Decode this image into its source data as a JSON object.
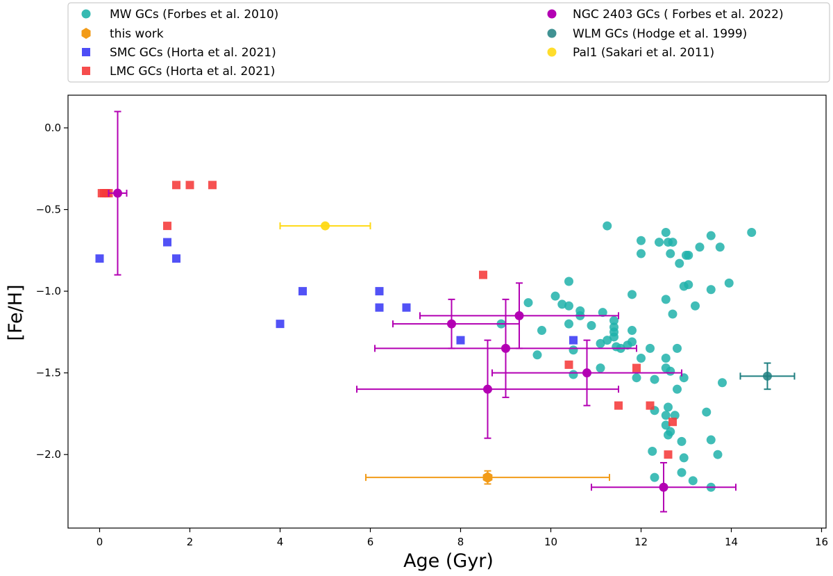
{
  "chart_data": {
    "type": "scatter",
    "xlabel": "Age (Gyr)",
    "ylabel": "[Fe/H]",
    "xlim": [
      -0.7,
      16.1
    ],
    "ylim": [
      -2.45,
      0.2
    ],
    "xticks": [
      0,
      2,
      4,
      6,
      8,
      10,
      12,
      14,
      16
    ],
    "yticks": [
      0.0,
      -0.5,
      -1.0,
      -1.5,
      -2.0
    ],
    "xtick_labels": [
      "0",
      "2",
      "4",
      "6",
      "8",
      "10",
      "12",
      "14",
      "16"
    ],
    "ytick_labels": [
      "0.0",
      "−0.5",
      "−1.0",
      "−1.5",
      "−2.0"
    ],
    "legend_position": "top",
    "series": [
      {
        "name": "MW GCs (Forbes et al. 2010)",
        "key": "mw",
        "marker": "circle",
        "color": "#20b2aa",
        "x": [
          11.25,
          12.0,
          12.4,
          12.6,
          12.7,
          12.0,
          12.55,
          12.65,
          12.85,
          13.0,
          13.05,
          13.3,
          13.55,
          13.75,
          14.45,
          10.4,
          11.8,
          12.95,
          13.05,
          13.55,
          13.95,
          9.5,
          10.25,
          10.4,
          10.65,
          11.15,
          12.55,
          12.7,
          13.2,
          8.9,
          9.8,
          10.1,
          10.4,
          10.65,
          10.9,
          11.4,
          11.4,
          11.4,
          11.4,
          11.1,
          11.25,
          11.45,
          11.55,
          11.7,
          11.8,
          11.8,
          12.2,
          12.55,
          12.8,
          10.5,
          9.7,
          10.5,
          11.1,
          12.0,
          12.55,
          12.65,
          11.9,
          12.3,
          12.95,
          12.8,
          12.6,
          12.55,
          12.75,
          12.3,
          12.65,
          12.6,
          12.55,
          13.45,
          13.55,
          12.9,
          12.95,
          12.25,
          13.7,
          12.9,
          13.15,
          12.3,
          13.55,
          13.8
        ],
        "y": [
          -0.6,
          -0.69,
          -0.7,
          -0.7,
          -0.7,
          -0.77,
          -0.64,
          -0.77,
          -0.83,
          -0.78,
          -0.78,
          -0.73,
          -0.66,
          -0.73,
          -0.64,
          -0.94,
          -1.02,
          -0.97,
          -0.96,
          -0.99,
          -0.95,
          -1.07,
          -1.08,
          -1.09,
          -1.12,
          -1.13,
          -1.05,
          -1.14,
          -1.09,
          -1.2,
          -1.24,
          -1.03,
          -1.2,
          -1.15,
          -1.21,
          -1.18,
          -1.22,
          -1.25,
          -1.28,
          -1.32,
          -1.3,
          -1.34,
          -1.35,
          -1.33,
          -1.24,
          -1.31,
          -1.35,
          -1.41,
          -1.35,
          -1.36,
          -1.39,
          -1.51,
          -1.47,
          -1.41,
          -1.47,
          -1.49,
          -1.53,
          -1.54,
          -1.53,
          -1.6,
          -1.71,
          -1.76,
          -1.76,
          -1.73,
          -1.86,
          -1.88,
          -1.82,
          -1.74,
          -1.91,
          -1.92,
          -2.02,
          -1.98,
          -2.0,
          -2.11,
          -2.16,
          -2.14,
          -2.2,
          -1.56
        ]
      },
      {
        "name": "this work",
        "key": "this",
        "marker": "hexagon",
        "color": "#f29b18",
        "points": [
          {
            "x": 8.6,
            "y": -2.14,
            "xerr": [
              2.7,
              2.7
            ],
            "yerr": [
              0.04,
              0.04
            ]
          }
        ]
      },
      {
        "name": "SMC GCs (Horta et al. 2021)",
        "key": "smc",
        "marker": "square",
        "color": "#3a3af5",
        "x": [
          0.0,
          1.5,
          1.7,
          4.0,
          4.5,
          6.2,
          6.2,
          6.8,
          8.0,
          10.5
        ],
        "y": [
          -0.8,
          -0.7,
          -0.8,
          -1.2,
          -1.0,
          -1.0,
          -1.1,
          -1.1,
          -1.3,
          -1.3
        ]
      },
      {
        "name": "LMC GCs (Horta et al. 2021)",
        "key": "lmc",
        "marker": "square",
        "color": "#f53a3a",
        "x": [
          0.05,
          0.1,
          0.15,
          0.2,
          1.5,
          1.7,
          2.0,
          2.5,
          8.5,
          10.4,
          11.5,
          11.9,
          12.2,
          12.7,
          12.6
        ],
        "y": [
          -0.4,
          -0.4,
          -0.4,
          -0.4,
          -0.6,
          -0.35,
          -0.35,
          -0.35,
          -0.9,
          -1.45,
          -1.7,
          -1.47,
          -1.7,
          -1.8,
          -2.0
        ]
      },
      {
        "name": "NGC 2403 GCs ( Forbes et al. 2022)",
        "key": "ngc",
        "marker": "circle",
        "color": "#b300b3",
        "points": [
          {
            "x": 0.4,
            "y": -0.4,
            "xerr": [
              0.2,
              0.2
            ],
            "yerr": [
              0.5,
              0.5
            ]
          },
          {
            "x": 7.8,
            "y": -1.2,
            "xerr": [
              1.3,
              1.5
            ],
            "yerr": [
              0.15,
              0.15
            ]
          },
          {
            "x": 9.3,
            "y": -1.15,
            "xerr": [
              2.2,
              2.2
            ],
            "yerr": [
              0.2,
              0.2
            ]
          },
          {
            "x": 9.0,
            "y": -1.35,
            "xerr": [
              2.9,
              2.9
            ],
            "yerr": [
              0.3,
              0.3
            ]
          },
          {
            "x": 10.8,
            "y": -1.5,
            "xerr": [
              2.1,
              2.1
            ],
            "yerr": [
              0.2,
              0.2
            ]
          },
          {
            "x": 8.6,
            "y": -1.6,
            "xerr": [
              2.9,
              2.9
            ],
            "yerr": [
              0.3,
              0.3
            ]
          },
          {
            "x": 12.5,
            "y": -2.2,
            "xerr": [
              1.6,
              1.6
            ],
            "yerr": [
              0.15,
              0.15
            ]
          }
        ]
      },
      {
        "name": "WLM GCs (Hodge et al. 1999)",
        "key": "wlm",
        "marker": "circle",
        "color": "#1f7f80",
        "points": [
          {
            "x": 14.8,
            "y": -1.52,
            "xerr": [
              0.6,
              0.6
            ],
            "yerr": [
              0.08,
              0.08
            ]
          }
        ]
      },
      {
        "name": "Pal1 (Sakari et al. 2011)",
        "key": "pal",
        "marker": "circle",
        "color": "#ffd915",
        "points": [
          {
            "x": 5.0,
            "y": -0.6,
            "xerr": [
              1.0,
              1.0
            ],
            "yerr": [
              0.0,
              0.0
            ]
          }
        ]
      }
    ]
  }
}
